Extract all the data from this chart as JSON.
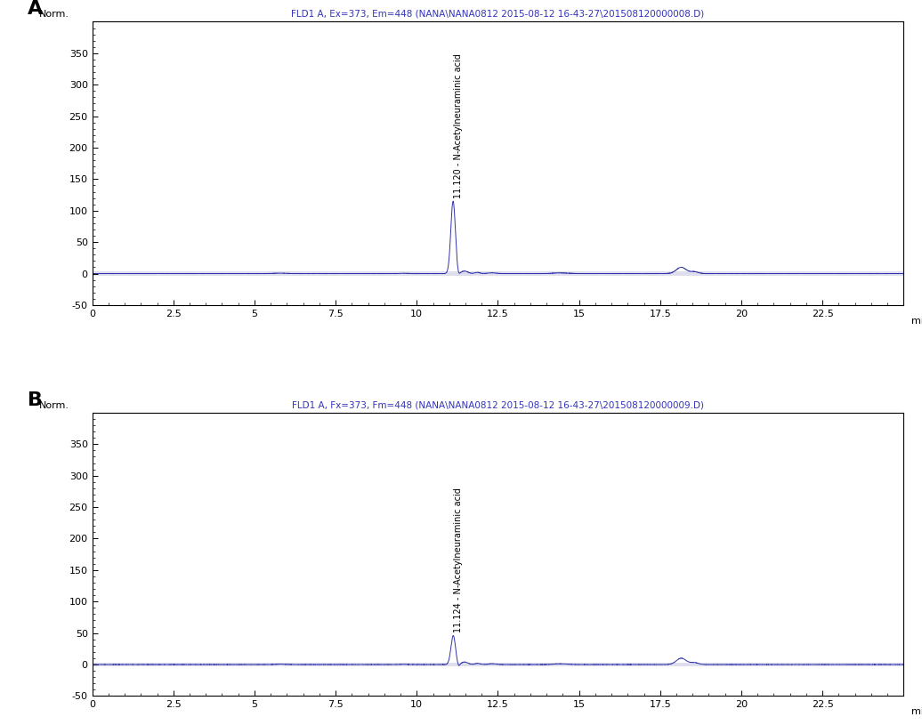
{
  "panel_A": {
    "title": "FLD1 A, Ex=373, Em=448 (NANA\\NANA0812 2015-08-12 16-43-27\\201508120000008.D)",
    "title_color": "#3333bb",
    "ylabel": "Norm.",
    "xlabel": "min",
    "xlim": [
      0,
      25
    ],
    "ylim": [
      -50,
      400
    ],
    "yticks": [
      0,
      50,
      100,
      150,
      200,
      250,
      300,
      350
    ],
    "ytick_neg": [
      -50
    ],
    "xticks": [
      0,
      2.5,
      5,
      7.5,
      10,
      12.5,
      15,
      17.5,
      20,
      22.5
    ],
    "xtick_labels": [
      "0",
      "2.5",
      "5",
      "7.5",
      "10",
      "12.5",
      "15",
      "17.5",
      "20",
      "22.5"
    ],
    "peak_time": 11.12,
    "peak_height": 115,
    "peak_label": "11.120 - N-Acetylneuraminic acid",
    "peak2_time": 18.15,
    "peak2_height": 10,
    "line_color": "#3333aa",
    "bg_color": "#ffffff",
    "band_color": "#d0d0e8"
  },
  "panel_B": {
    "title": "FLD1 A, Fx=373, Fm=448 (NANA\\NANA0812 2015-08-12 16-43-27\\201508120000009.D)",
    "title_color": "#3333bb",
    "ylabel": "Norm.",
    "xlabel": "min",
    "xlim": [
      0,
      25
    ],
    "ylim": [
      -50,
      400
    ],
    "yticks": [
      0,
      50,
      100,
      150,
      200,
      250,
      300,
      350
    ],
    "ytick_neg": [
      -50
    ],
    "xticks": [
      0,
      2.5,
      5,
      7.5,
      10,
      12.5,
      15,
      17.5,
      20,
      22.5
    ],
    "xtick_labels": [
      "0",
      "2.5",
      "5",
      "7.5",
      "10",
      "12.5",
      "15",
      "17.5",
      "20",
      "22.5"
    ],
    "peak_time": 11.124,
    "peak_height": 46,
    "peak_label": "11.124 - N-Acetylneuraminic acid",
    "peak2_time": 18.15,
    "peak2_height": 10,
    "line_color": "#3333aa",
    "bg_color": "#ffffff",
    "band_color": "#d0d0e8"
  },
  "label_A": "A",
  "label_B": "B",
  "fig_bg": "#ffffff"
}
